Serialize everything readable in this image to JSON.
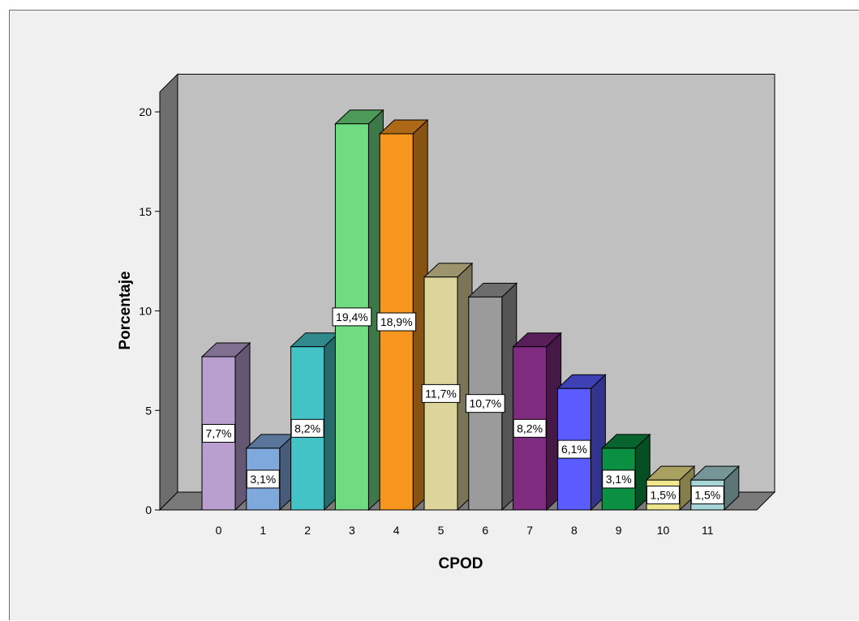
{
  "chart_data": {
    "type": "bar",
    "style": "3d",
    "title": "",
    "xlabel": "CPOD",
    "ylabel": "Porcentaje",
    "ylim": [
      0,
      21
    ],
    "yticks": [
      0,
      5,
      10,
      15,
      20
    ],
    "grid": false,
    "legend": "none",
    "categories": [
      "0",
      "1",
      "2",
      "3",
      "4",
      "5",
      "6",
      "7",
      "8",
      "9",
      "10",
      "11"
    ],
    "values": [
      7.7,
      3.1,
      8.2,
      19.4,
      18.9,
      11.7,
      10.7,
      8.2,
      6.1,
      3.1,
      1.5,
      1.5
    ],
    "data_labels": [
      "7,7%",
      "3,1%",
      "8,2%",
      "19,4%",
      "18,9%",
      "11,7%",
      "10,7%",
      "8,2%",
      "6,1%",
      "3,1%",
      "1,5%",
      "1,5%"
    ],
    "colors": [
      "#b89fcf",
      "#7fa8dc",
      "#44c3c6",
      "#6fdc82",
      "#f7961e",
      "#ddd49c",
      "#9b9b9b",
      "#7e2b80",
      "#5a5cff",
      "#0b8f43",
      "#f0e68c",
      "#a7d5d8"
    ],
    "plot_background": "#c0c0c0",
    "floor_color": "#7a7a7a"
  }
}
